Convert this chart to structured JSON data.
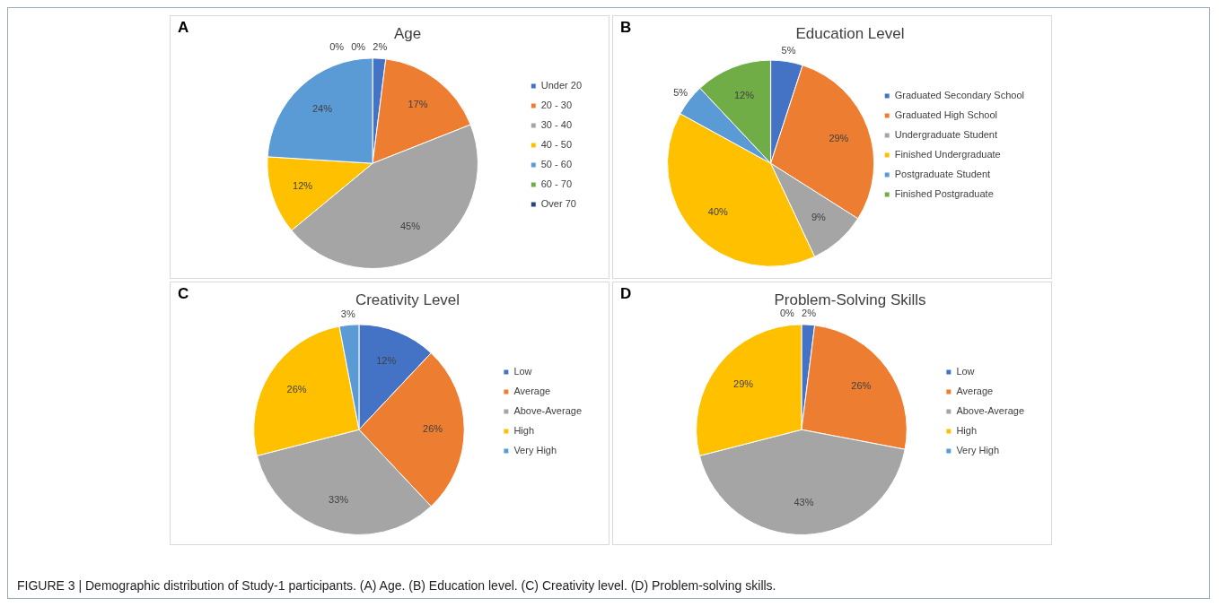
{
  "chart_data": [
    {
      "type": "pie",
      "title": "Age",
      "annotations": [
        "A",
        "FIGURE 3 | Demographic distribution of Study-1 participants. (A) Age. (B) Education level. (C) Creativity level. (D) Problem-solving skills."
      ],
      "categories": [
        "Under 20",
        "20 - 30",
        "30 - 40",
        "40 - 50",
        "50 - 60",
        "60 - 70",
        "Over 70"
      ],
      "values": [
        2,
        17,
        45,
        12,
        24,
        0,
        0
      ],
      "value_labels": [
        "2%",
        "17%",
        "45%",
        "12%",
        "24%",
        "0%",
        "0%"
      ],
      "colors": [
        "#4472c4",
        "#ed7d31",
        "#a5a5a5",
        "#ffc000",
        "#5b9bd5",
        "#70ad47",
        "#264478"
      ],
      "legend": "right"
    },
    {
      "type": "pie",
      "title": "Education Level",
      "annotations": [
        "B"
      ],
      "categories": [
        "Graduated Secondary School",
        "Graduated High School",
        "Undergraduate Student",
        "Finished Undergraduate",
        "Postgraduate Student",
        "Finished Postgraduate"
      ],
      "values": [
        5,
        29,
        9,
        40,
        5,
        12
      ],
      "value_labels": [
        "5%",
        "29%",
        "9%",
        "40%",
        "5%",
        "12%"
      ],
      "colors": [
        "#4472c4",
        "#ed7d31",
        "#a5a5a5",
        "#ffc000",
        "#5b9bd5",
        "#70ad47"
      ],
      "legend": "right"
    },
    {
      "type": "pie",
      "title": "Creativity Level",
      "annotations": [
        "C"
      ],
      "categories": [
        "Low",
        "Average",
        "Above-Average",
        "High",
        "Very High"
      ],
      "values": [
        12,
        26,
        33,
        26,
        3
      ],
      "value_labels": [
        "12%",
        "26%",
        "33%",
        "26%",
        "3%"
      ],
      "colors": [
        "#4472c4",
        "#ed7d31",
        "#a5a5a5",
        "#ffc000",
        "#5b9bd5"
      ],
      "legend": "right"
    },
    {
      "type": "pie",
      "title": "Problem-Solving Skills",
      "annotations": [
        "D"
      ],
      "categories": [
        "Low",
        "Average",
        "Above-Average",
        "High",
        "Very High"
      ],
      "values": [
        2,
        26,
        43,
        29,
        0
      ],
      "value_labels": [
        "2%",
        "26%",
        "43%",
        "29%",
        "0%"
      ],
      "colors": [
        "#4472c4",
        "#ed7d31",
        "#a5a5a5",
        "#ffc000",
        "#5b9bd5"
      ],
      "legend": "right"
    }
  ]
}
